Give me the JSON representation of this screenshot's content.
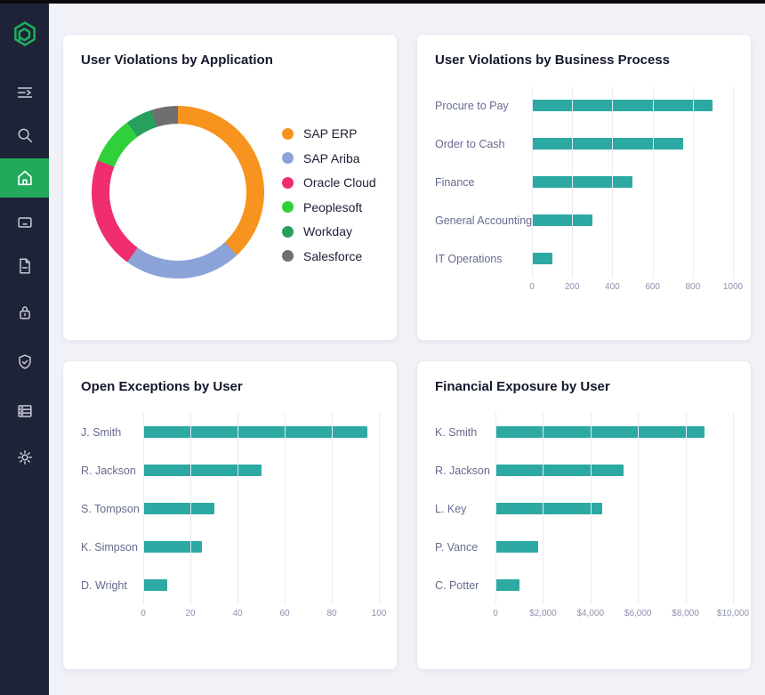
{
  "window": {
    "frame_color": "#0B0B0D",
    "content_background": "#F1F2F8",
    "card_background": "#FFFFFF"
  },
  "sidebar": {
    "background": "#1F2337",
    "active_background": "#22A95C",
    "icon_color": "#C9CCDA",
    "logo": "pathlock-hexagon-logo",
    "items": [
      {
        "icon": "menu-icon",
        "active": false
      },
      {
        "icon": "search-icon",
        "active": false
      },
      {
        "icon": "home-icon",
        "active": true
      },
      {
        "icon": "devices-icon",
        "active": false
      },
      {
        "icon": "document-icon",
        "active": false
      },
      {
        "icon": "lock-icon",
        "active": false
      },
      {
        "icon": "shield-check-icon",
        "active": false
      },
      {
        "icon": "server-icon",
        "active": false
      },
      {
        "icon": "settings-icon",
        "active": false
      }
    ]
  },
  "chart_data": [
    {
      "type": "pie",
      "subtype": "donut",
      "title": "User Violations by Application",
      "legend_position": "right",
      "values_are_estimated_percent": true,
      "segments": [
        {
          "label": "SAP ERP",
          "value": 38,
          "color": "#F6941F"
        },
        {
          "label": "SAP Ariba",
          "value": 22,
          "color": "#8CA3D8"
        },
        {
          "label": "Oracle Cloud",
          "value": 21,
          "color": "#F02D6F"
        },
        {
          "label": "Peoplesoft",
          "value": 9,
          "color": "#30D03A"
        },
        {
          "label": "Workday",
          "value": 5,
          "color": "#26A05C"
        },
        {
          "label": "Salesforce",
          "value": 5,
          "color": "#6F6F6F"
        }
      ]
    },
    {
      "type": "bar",
      "orientation": "horizontal",
      "title": "User Violations by Business Process",
      "categories": [
        "Procure to Pay",
        "Order to Cash",
        "Finance",
        "General Accounting",
        "IT Operations"
      ],
      "values": [
        900,
        750,
        500,
        300,
        100
      ],
      "xlim": [
        0,
        1000
      ],
      "tick_labels": [
        "0",
        "200",
        "400",
        "600",
        "800",
        "1000"
      ],
      "bar_color": "#2DA9A3",
      "grid": true
    },
    {
      "type": "bar",
      "orientation": "horizontal",
      "title": "Open Exceptions by User",
      "categories": [
        "J. Smith",
        "R. Jackson",
        "S. Tompson",
        "K. Simpson",
        "D. Wright"
      ],
      "values": [
        95,
        50,
        30,
        25,
        10
      ],
      "xlim": [
        0,
        100
      ],
      "tick_labels": [
        "0",
        "20",
        "40",
        "60",
        "80",
        "100"
      ],
      "bar_color": "#2DA9A3",
      "grid": true
    },
    {
      "type": "bar",
      "orientation": "horizontal",
      "title": "Financial Exposure by User",
      "categories": [
        "K. Smith",
        "R. Jackson",
        "L. Key",
        "P. Vance",
        "C. Potter"
      ],
      "values": [
        8800,
        5400,
        4500,
        1800,
        1000
      ],
      "xlim": [
        0,
        10000
      ],
      "tick_labels": [
        "0",
        "$2,000",
        "$4,000",
        "$6,000",
        "$8,000",
        "$10,000"
      ],
      "bar_color": "#2DA9A3",
      "grid": true
    }
  ]
}
